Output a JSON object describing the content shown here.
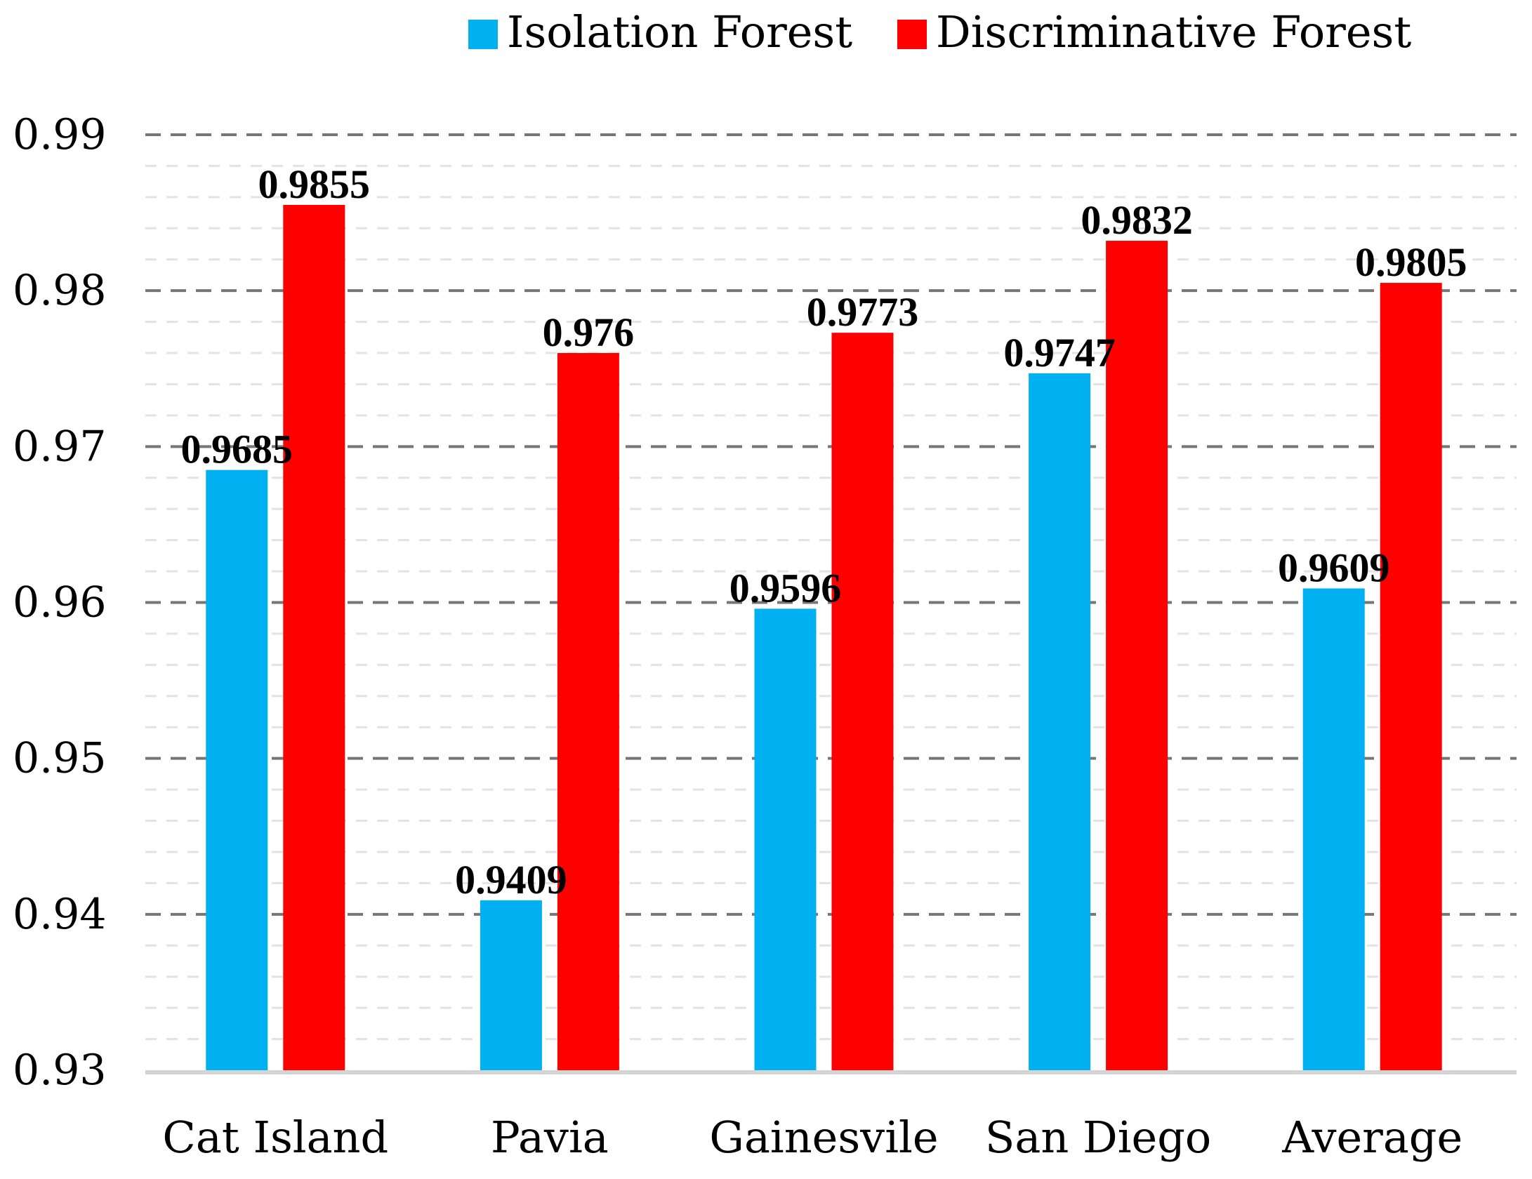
{
  "chart_data": {
    "type": "bar",
    "title": "",
    "xlabel": "",
    "ylabel": "",
    "categories": [
      "Cat Island",
      "Pavia",
      "Gainesvile",
      "San Diego",
      "Average"
    ],
    "series": [
      {
        "name": "Isolation Forest",
        "color": "#00B0F0",
        "values": [
          0.9685,
          0.9409,
          0.9596,
          0.9747,
          0.9609
        ],
        "labels": [
          "0.9685",
          "0.9409",
          "0.9596",
          "0.9747",
          "0.9609"
        ]
      },
      {
        "name": "Discriminative Forest",
        "color": "#FF0000",
        "values": [
          0.9855,
          0.976,
          0.9773,
          0.9832,
          0.9805
        ],
        "labels": [
          "0.9855",
          "0.976",
          "0.9773",
          "0.9832",
          "0.9805"
        ]
      }
    ],
    "ylim": [
      0.93,
      0.99
    ],
    "yticks": [
      0.93,
      0.94,
      0.95,
      0.96,
      0.97,
      0.98,
      0.99
    ],
    "ytick_labels": [
      "0.93",
      "0.94",
      "0.95",
      "0.96",
      "0.97",
      "0.98",
      "0.99"
    ],
    "grid": true,
    "legend_position": "top"
  }
}
